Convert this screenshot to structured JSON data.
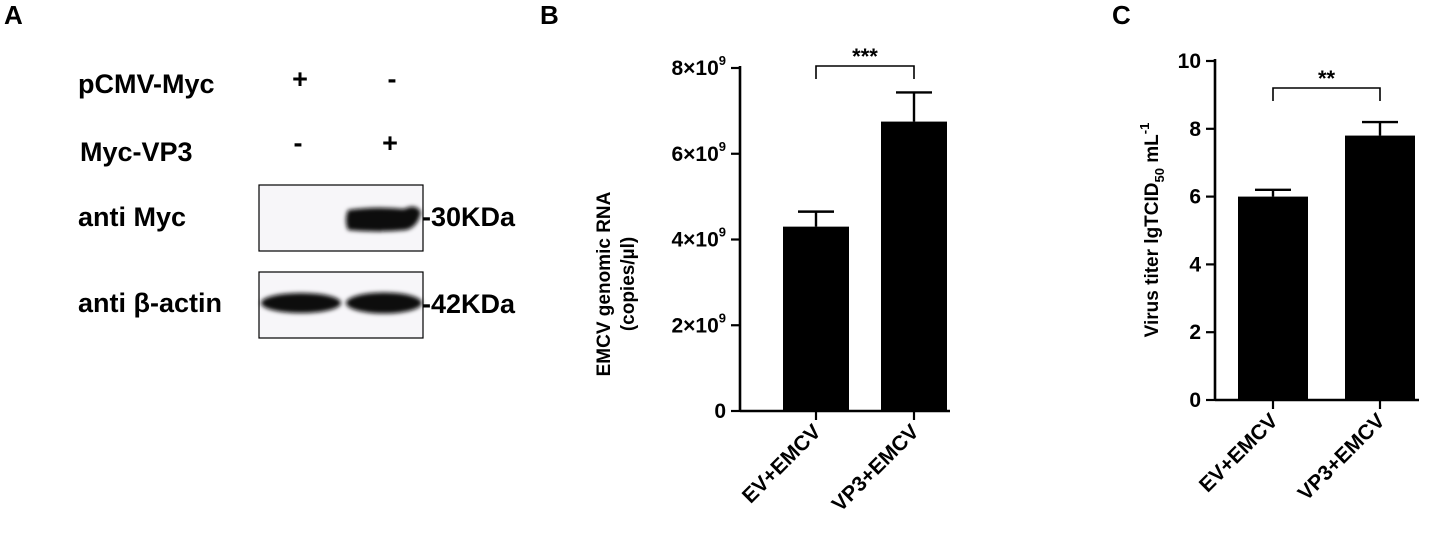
{
  "panels": {
    "a": {
      "letter": "A",
      "rows": [
        {
          "label": "pCMV-Myc",
          "lane1": "+",
          "lane2": "-"
        },
        {
          "label": "Myc-VP3",
          "lane1": "-",
          "lane2": "+"
        }
      ],
      "blots": [
        {
          "label": "anti Myc",
          "marker": "-30KDa"
        },
        {
          "label": "anti β-actin",
          "marker": "-42KDa"
        }
      ]
    },
    "b": {
      "letter": "B"
    },
    "c": {
      "letter": "C"
    }
  },
  "chart_data": [
    {
      "type": "bar",
      "categories": [
        "EV+EMCV",
        "VP3+EMCV"
      ],
      "values": [
        4300000000.0,
        6750000000.0
      ],
      "errors": [
        350000000.0,
        680000000.0
      ],
      "ylabel_lines": [
        "EMCV genomic RNA",
        "(copies/µl)"
      ],
      "ylim": [
        0,
        8000000000.0
      ],
      "yticks": [
        {
          "value": 0,
          "base": "0",
          "exp": ""
        },
        {
          "value": 2000000000.0,
          "base": "2×10",
          "exp": "9"
        },
        {
          "value": 4000000000.0,
          "base": "4×10",
          "exp": "9"
        },
        {
          "value": 6000000000.0,
          "base": "6×10",
          "exp": "9"
        },
        {
          "value": 8000000000.0,
          "base": "8×10",
          "exp": "9"
        }
      ],
      "significance": "***",
      "grid": false,
      "bar_color": "#000000"
    },
    {
      "type": "bar",
      "categories": [
        "EV+EMCV",
        "VP3+EMCV"
      ],
      "values": [
        6.0,
        7.8
      ],
      "errors": [
        0.2,
        0.4
      ],
      "ylabel": {
        "main": "Virus titer lgTCID",
        "sub": "50",
        "unit": " mL",
        "sup": "-1"
      },
      "ylim": [
        0,
        10
      ],
      "yticks": [
        {
          "value": 0,
          "base": "0",
          "exp": ""
        },
        {
          "value": 2,
          "base": "2",
          "exp": ""
        },
        {
          "value": 4,
          "base": "4",
          "exp": ""
        },
        {
          "value": 6,
          "base": "6",
          "exp": ""
        },
        {
          "value": 8,
          "base": "8",
          "exp": ""
        },
        {
          "value": 10,
          "base": "10",
          "exp": ""
        }
      ],
      "significance": "**",
      "grid": false,
      "bar_color": "#000000"
    }
  ]
}
